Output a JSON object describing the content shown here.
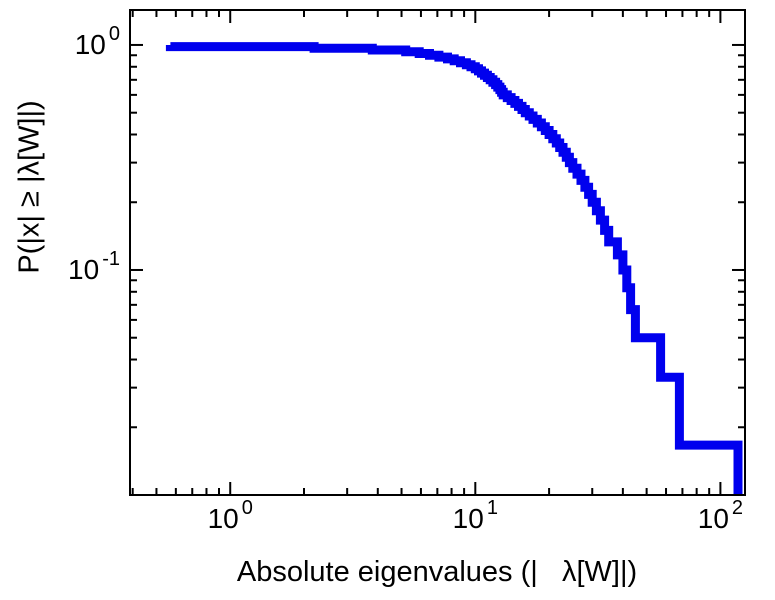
{
  "figure": {
    "background": "#ffffff",
    "axis_color": "#000000",
    "line_color": "#0000ee"
  },
  "x_axis": {
    "label": "Absolute eigenvalues (|   λ[W]|)",
    "scale": "log",
    "ticks": [
      {
        "value": 1,
        "mantissa": "10",
        "exponent": "0"
      },
      {
        "value": 10,
        "mantissa": "10",
        "exponent": "1"
      },
      {
        "value": 100,
        "mantissa": "10",
        "exponent": "2"
      }
    ],
    "minor_ticks": [
      0.4,
      0.5,
      0.6,
      0.7,
      0.8,
      0.9,
      2,
      3,
      4,
      5,
      6,
      7,
      8,
      9,
      20,
      30,
      40,
      50,
      60,
      70,
      80,
      90
    ]
  },
  "y_axis": {
    "label": "P(|x| ≥ |λ[W]|)",
    "scale": "log",
    "ticks": [
      {
        "value": 1,
        "mantissa": "10",
        "exponent": "0"
      },
      {
        "value": 0.1,
        "mantissa": "10",
        "exponent": "-1"
      }
    ],
    "minor_ticks": [
      0.02,
      0.03,
      0.04,
      0.05,
      0.06,
      0.07,
      0.08,
      0.09,
      0.2,
      0.3,
      0.4,
      0.5,
      0.6,
      0.7,
      0.8,
      0.9
    ]
  },
  "chart_data": {
    "type": "line",
    "style": "empirical-ccdf-step",
    "title": "",
    "xlabel": "Absolute eigenvalues (|   λ[W]|)",
    "ylabel": "P(|x| ≥ |λ[W]|)",
    "xscale": "log",
    "yscale": "log",
    "xlim": [
      0.39,
      126
    ],
    "ylim": [
      0.01,
      1.43
    ],
    "grid": false,
    "legend": "none",
    "n_points": 60,
    "series": [
      {
        "name": "absolute-eigenvalues-ccdf",
        "color": "#0000ee",
        "line_width": 9,
        "eigenvalues": [
          0.57,
          2.2,
          3.8,
          5.2,
          5.9,
          6.5,
          7.1,
          7.7,
          8.2,
          8.7,
          9.2,
          9.6,
          10.0,
          10.3,
          10.6,
          10.9,
          11.2,
          11.5,
          11.8,
          12.1,
          12.35,
          12.6,
          12.8,
          13.0,
          13.5,
          14.0,
          14.5,
          15.0,
          15.5,
          16.0,
          16.6,
          17.2,
          17.9,
          18.6,
          19.3,
          20.0,
          20.7,
          21.4,
          22.1,
          22.8,
          23.5,
          24.2,
          25.0,
          26.0,
          27.0,
          28.0,
          29.0,
          30.0,
          31.2,
          32.4,
          33.7,
          35.0,
          38.0,
          40.0,
          41.5,
          43.0,
          45.0,
          57.0,
          68.0,
          118.0
        ]
      }
    ]
  }
}
